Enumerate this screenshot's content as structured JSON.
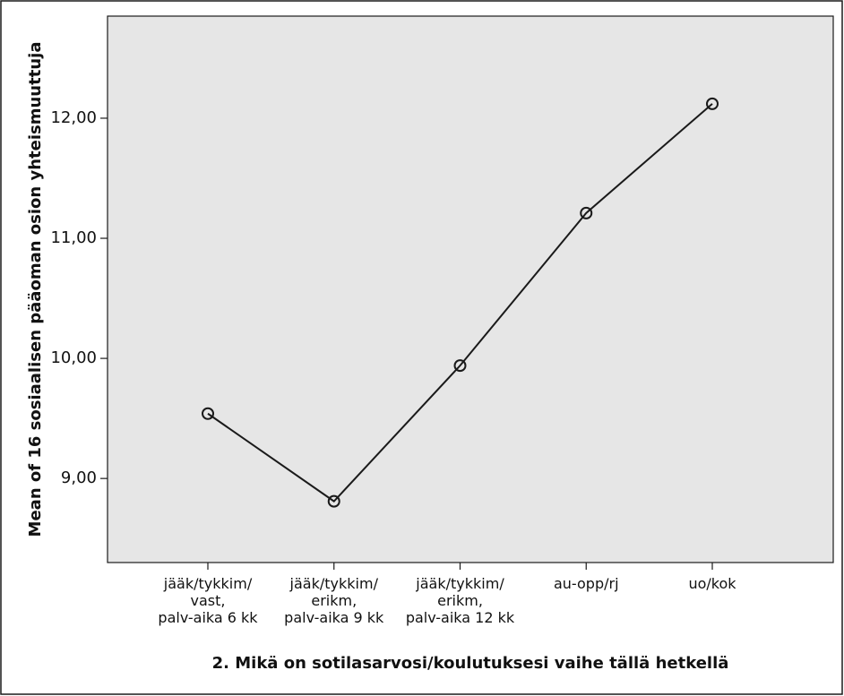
{
  "chart_data": {
    "type": "line",
    "categories": [
      [
        "jääk/tykkim/",
        "vast,",
        "palv-aika 6 kk"
      ],
      [
        "jääk/tykkim/",
        "erikm,",
        "palv-aika 9 kk"
      ],
      [
        "jääk/tykkim/",
        "erikm,",
        "palv-aika 12 kk"
      ],
      [
        "au-opp/rj"
      ],
      [
        "uo/kok"
      ]
    ],
    "series": [
      {
        "values": [
          9.54,
          8.81,
          9.94,
          11.21,
          12.12
        ]
      }
    ],
    "xlabel": "2. Mikä on sotilasarvosi/koulutuksesi vaihe tällä hetkellä",
    "ylabel": "Mean of 16 sosiaalisen pääoman osion yhteismuuttuja",
    "ylim": [
      8.3,
      12.85
    ],
    "yticks": [
      9,
      10,
      11,
      12
    ],
    "ytick_labels": [
      "9,00",
      "10,00",
      "11,00",
      "12,00"
    ],
    "grid": false,
    "markers": "open-circle",
    "colors": {
      "line": "#1a1a1a",
      "plot_background": "#e6e6e6",
      "frame": "#1a1a1a"
    }
  }
}
